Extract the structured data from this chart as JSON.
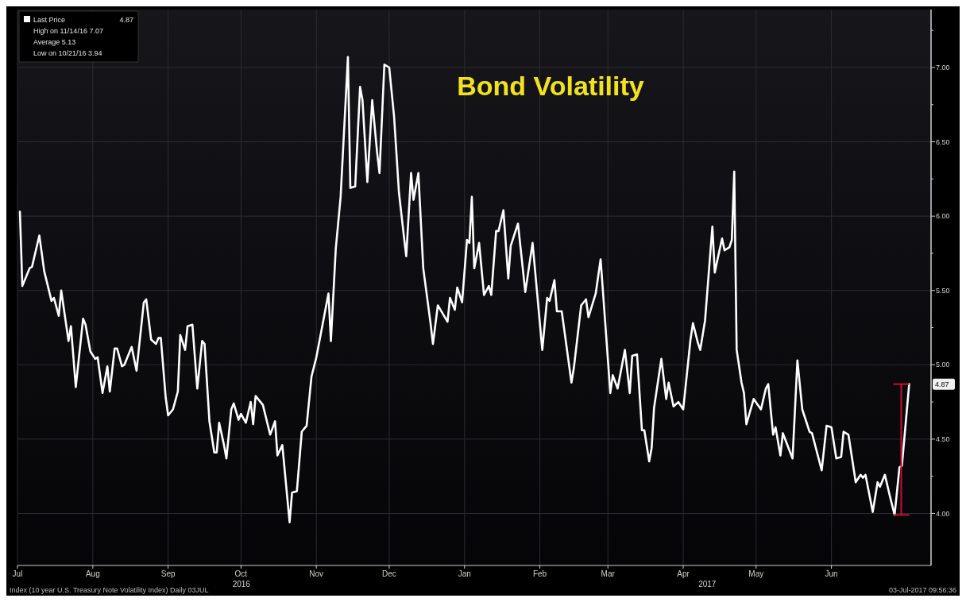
{
  "chart_data": {
    "type": "line",
    "title": "Bond Volatility",
    "x": [
      "2016-07-02",
      "2016-07-03",
      "2016-07-06",
      "2016-07-07",
      "2016-07-10",
      "2016-07-12",
      "2016-07-15",
      "2016-07-16",
      "2016-07-18",
      "2016-07-19",
      "2016-07-22",
      "2016-07-23",
      "2016-07-25",
      "2016-07-28",
      "2016-07-29",
      "2016-07-31",
      "2016-08-02",
      "2016-08-03",
      "2016-08-05",
      "2016-08-07",
      "2016-08-08",
      "2016-08-10",
      "2016-08-11",
      "2016-08-13",
      "2016-08-14",
      "2016-08-17",
      "2016-08-19",
      "2016-08-22",
      "2016-08-23",
      "2016-08-25",
      "2016-08-27",
      "2016-08-28",
      "2016-08-29",
      "2016-08-31",
      "2016-09-01",
      "2016-09-03",
      "2016-09-05",
      "2016-09-06",
      "2016-09-08",
      "2016-09-09",
      "2016-09-11",
      "2016-09-13",
      "2016-09-15",
      "2016-09-16",
      "2016-09-18",
      "2016-09-20",
      "2016-09-21",
      "2016-09-22",
      "2016-09-24",
      "2016-09-25",
      "2016-09-27",
      "2016-09-28",
      "2016-09-30",
      "2016-10-01",
      "2016-10-03",
      "2016-10-05",
      "2016-10-06",
      "2016-10-07",
      "2016-10-10",
      "2016-10-13",
      "2016-10-15",
      "2016-10-16",
      "2016-10-18",
      "2016-10-21",
      "2016-10-22",
      "2016-10-24",
      "2016-10-26",
      "2016-10-28",
      "2016-10-30",
      "2016-11-01",
      "2016-11-06",
      "2016-11-07",
      "2016-11-09",
      "2016-11-11",
      "2016-11-14",
      "2016-11-15",
      "2016-11-17",
      "2016-11-19",
      "2016-11-20",
      "2016-11-22",
      "2016-11-24",
      "2016-11-26",
      "2016-11-27",
      "2016-11-29",
      "2016-12-01",
      "2016-12-03",
      "2016-12-05",
      "2016-12-07",
      "2016-12-08",
      "2016-12-10",
      "2016-12-11",
      "2016-12-13",
      "2016-12-15",
      "2016-12-18",
      "2016-12-19",
      "2016-12-21",
      "2016-12-25",
      "2016-12-26",
      "2016-12-28",
      "2016-12-29",
      "2016-12-31",
      "2017-01-02",
      "2017-01-03",
      "2017-01-04",
      "2017-01-05",
      "2017-01-07",
      "2017-01-09",
      "2017-01-11",
      "2017-01-12",
      "2017-01-14",
      "2017-01-15",
      "2017-01-17",
      "2017-01-19",
      "2017-01-20",
      "2017-01-23",
      "2017-01-26",
      "2017-01-29",
      "2017-02-02",
      "2017-02-04",
      "2017-02-05",
      "2017-02-07",
      "2017-02-08",
      "2017-02-10",
      "2017-02-14",
      "2017-02-15",
      "2017-02-18",
      "2017-02-20",
      "2017-02-21",
      "2017-02-24",
      "2017-02-26",
      "2017-03-02",
      "2017-03-03",
      "2017-03-05",
      "2017-03-08",
      "2017-03-10",
      "2017-03-11",
      "2017-03-13",
      "2017-03-15",
      "2017-03-16",
      "2017-03-18",
      "2017-03-19",
      "2017-03-20",
      "2017-03-23",
      "2017-03-25",
      "2017-03-26",
      "2017-03-28",
      "2017-03-30",
      "2017-04-01",
      "2017-04-04",
      "2017-04-05",
      "2017-04-07",
      "2017-04-08",
      "2017-04-10",
      "2017-04-13",
      "2017-04-14",
      "2017-04-15",
      "2017-04-17",
      "2017-04-18",
      "2017-04-20",
      "2017-04-21",
      "2017-04-22",
      "2017-04-23",
      "2017-04-25",
      "2017-04-26",
      "2017-04-27",
      "2017-04-30",
      "2017-05-03",
      "2017-05-05",
      "2017-05-06",
      "2017-05-08",
      "2017-05-09",
      "2017-05-11",
      "2017-05-12",
      "2017-05-16",
      "2017-05-18",
      "2017-05-20",
      "2017-05-23",
      "2017-05-24",
      "2017-05-28",
      "2017-05-30",
      "2017-06-01",
      "2017-06-03",
      "2017-06-05",
      "2017-06-06",
      "2017-06-08",
      "2017-06-11",
      "2017-06-13",
      "2017-06-14",
      "2017-06-15",
      "2017-06-18",
      "2017-06-20",
      "2017-06-21",
      "2017-06-23",
      "2017-06-25",
      "2017-06-27",
      "2017-06-29",
      "2017-06-30",
      "2017-07-03"
    ],
    "series": [
      {
        "name": "Last Price",
        "color": "#ffffff",
        "values": [
          6.03,
          5.53,
          5.65,
          5.66,
          5.87,
          5.63,
          5.43,
          5.45,
          5.33,
          5.5,
          5.16,
          5.26,
          4.85,
          5.31,
          5.27,
          5.09,
          5.04,
          5.05,
          4.81,
          4.99,
          4.82,
          5.11,
          5.11,
          4.99,
          5.0,
          5.12,
          4.96,
          5.42,
          5.44,
          5.17,
          5.14,
          5.18,
          5.18,
          4.78,
          4.66,
          4.7,
          4.82,
          5.2,
          5.1,
          5.26,
          5.27,
          4.84,
          5.16,
          5.14,
          4.62,
          4.41,
          4.41,
          4.61,
          4.46,
          4.37,
          4.7,
          4.74,
          4.63,
          4.67,
          4.61,
          4.75,
          4.6,
          4.79,
          4.73,
          4.53,
          4.62,
          4.39,
          4.46,
          3.94,
          4.14,
          4.15,
          4.55,
          4.59,
          4.92,
          5.05,
          5.48,
          5.16,
          5.78,
          6.13,
          7.07,
          6.19,
          6.2,
          6.87,
          6.78,
          6.23,
          6.78,
          6.43,
          6.29,
          7.02,
          7.0,
          6.67,
          6.16,
          5.87,
          5.73,
          6.29,
          6.11,
          6.29,
          5.65,
          5.28,
          5.14,
          5.4,
          5.29,
          5.45,
          5.37,
          5.52,
          5.42,
          5.84,
          5.82,
          6.13,
          5.65,
          5.82,
          5.47,
          5.53,
          5.47,
          5.9,
          5.9,
          6.04,
          5.58,
          5.8,
          5.95,
          5.49,
          5.82,
          5.1,
          5.45,
          5.43,
          5.57,
          5.36,
          5.36,
          4.88,
          4.98,
          5.4,
          5.44,
          5.32,
          5.48,
          5.71,
          4.81,
          4.93,
          4.84,
          5.1,
          4.81,
          5.06,
          5.07,
          4.56,
          4.56,
          4.35,
          4.44,
          4.71,
          5.04,
          4.77,
          4.88,
          4.72,
          4.75,
          4.7,
          5.17,
          5.28,
          5.15,
          5.1,
          5.3,
          5.93,
          5.62,
          5.7,
          5.85,
          5.77,
          5.79,
          5.84,
          6.3,
          5.1,
          4.88,
          4.81,
          4.6,
          4.77,
          4.7,
          4.84,
          4.87,
          4.53,
          4.58,
          4.39,
          4.54,
          4.37,
          5.03,
          4.7,
          4.55,
          4.54,
          4.29,
          4.59,
          4.58,
          4.37,
          4.38,
          4.55,
          4.53,
          4.21,
          4.26,
          4.24,
          4.26,
          4.01,
          4.21,
          4.18,
          4.26,
          4.12,
          3.99,
          4.31,
          4.32,
          4.87
        ]
      }
    ],
    "xlim": [
      "2016-07-01",
      "2017-07-12"
    ],
    "xticks": [
      {
        "value": "2016-07-01",
        "label": "Jul"
      },
      {
        "value": "2016-08-01",
        "label": "Aug"
      },
      {
        "value": "2016-09-01",
        "label": "Sep"
      },
      {
        "value": "2016-10-01",
        "label": "Oct"
      },
      {
        "value": "2016-11-01",
        "label": "Nov"
      },
      {
        "value": "2016-12-01",
        "label": "Dec"
      },
      {
        "value": "2017-01-01",
        "label": "Jan"
      },
      {
        "value": "2017-02-01",
        "label": "Feb"
      },
      {
        "value": "2017-03-01",
        "label": "Mar"
      },
      {
        "value": "2017-04-01",
        "label": "Apr"
      },
      {
        "value": "2017-05-01",
        "label": "May"
      },
      {
        "value": "2017-06-01",
        "label": "Jun"
      }
    ],
    "ylim": [
      3.65,
      7.39
    ],
    "yticks": [
      {
        "value": 4,
        "label": "4.00"
      },
      {
        "value": 4.25,
        "label": null
      },
      {
        "value": 4.5,
        "label": "4.50"
      },
      {
        "value": 4.75,
        "label": null
      },
      {
        "value": 5,
        "label": "5.00"
      },
      {
        "value": 5.25,
        "label": null
      },
      {
        "value": 5.5,
        "label": "5.50"
      },
      {
        "value": 5.75,
        "label": null
      },
      {
        "value": 6,
        "label": "6.00"
      },
      {
        "value": 6.25,
        "label": null
      },
      {
        "value": 6.5,
        "label": "6.50"
      },
      {
        "value": 6.75,
        "label": null
      },
      {
        "value": 7,
        "label": "7.00"
      },
      {
        "value": 7.25,
        "label": null
      }
    ],
    "grid": true,
    "legend": "top left",
    "marker": "none",
    "line_style": "solid",
    "annotations": [
      "4.87",
      "4.87",
      "High on 11/14/16  7.07",
      "Average  5.13",
      "Low on 10/21/16  3.94",
      "2016",
      "2017",
      "Index (10 year U.S. Treasury Note Volatility Index)  Daily 03JUL",
      "03-Jul-2017 09:56:36"
    ]
  }
}
